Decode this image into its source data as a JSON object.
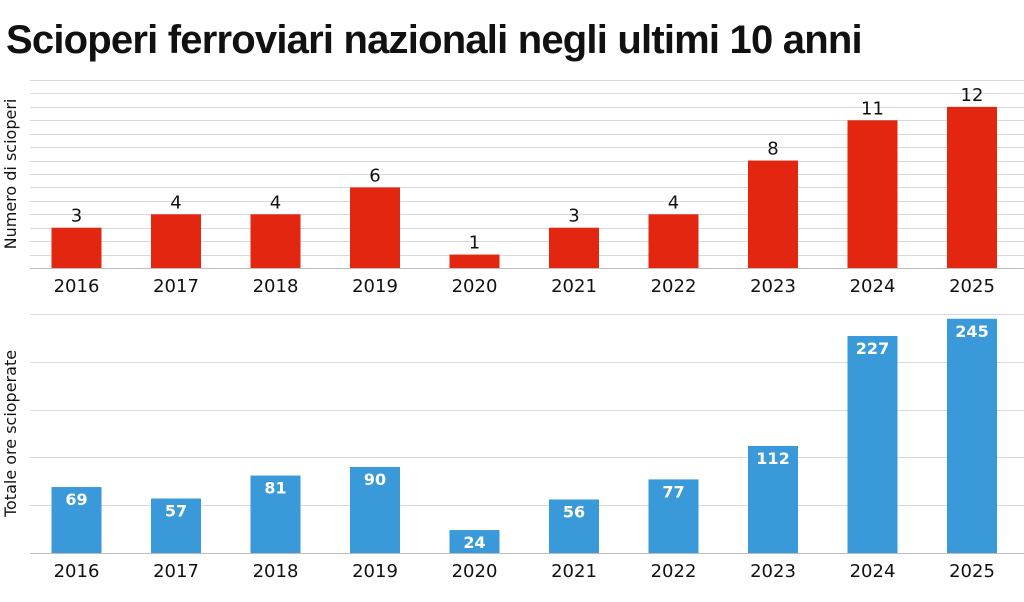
{
  "title": "Scioperi ferroviari nazionali negli ultimi 10 anni",
  "chart_data": [
    {
      "type": "bar",
      "ylabel": "Numero di scioperi",
      "color": "#e3260f",
      "categories": [
        "2016",
        "2017",
        "2018",
        "2019",
        "2020",
        "2021",
        "2022",
        "2023",
        "2024",
        "2025"
      ],
      "values": [
        3,
        4,
        4,
        6,
        1,
        3,
        4,
        8,
        11,
        12
      ],
      "ylim": [
        0,
        14
      ],
      "grid": true,
      "label_position": "above"
    },
    {
      "type": "bar",
      "ylabel": "Totale ore scioperate",
      "color": "#3a9ad9",
      "categories": [
        "2016",
        "2017",
        "2018",
        "2019",
        "2020",
        "2021",
        "2022",
        "2023",
        "2024",
        "2025"
      ],
      "values": [
        69,
        57,
        81,
        90,
        24,
        56,
        77,
        112,
        227,
        245
      ],
      "ylim": [
        0,
        250
      ],
      "grid": true,
      "label_position": "inside"
    }
  ]
}
